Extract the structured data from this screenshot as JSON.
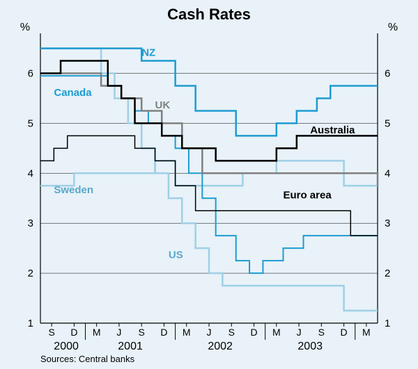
{
  "chart": {
    "type": "step-line",
    "title": "Cash Rates",
    "ylabel_left": "%",
    "ylabel_right": "%",
    "background_color": "#e8f2f8",
    "plot_background_color": "#e8f2f8",
    "axis_color": "#000000",
    "gridline_color": "#000000",
    "gridline_width": 0.5,
    "y_ticks": [
      1,
      2,
      3,
      4,
      5,
      6
    ],
    "ylim": [
      1,
      6.8
    ],
    "x_letters": [
      "S",
      "D",
      "M",
      "J",
      "S",
      "D",
      "M",
      "J",
      "S",
      "D",
      "M",
      "J",
      "S",
      "D",
      "M"
    ],
    "x_years": [
      "2000",
      "2001",
      "2002",
      "2003"
    ],
    "source": "Sources:  Central banks",
    "title_fontsize": 22,
    "tick_fontsize": 15,
    "label_fontsize": 15,
    "source_fontsize": 13,
    "series": {
      "nz": {
        "name": "NZ",
        "color": "#1d9bd1",
        "width": 2.5,
        "label_x": 0.3,
        "label_y": 6.35,
        "points": [
          [
            0.0,
            6.5
          ],
          [
            0.22,
            6.5
          ],
          [
            0.3,
            6.25
          ],
          [
            0.4,
            5.75
          ],
          [
            0.46,
            5.25
          ],
          [
            0.58,
            4.75
          ],
          [
            0.7,
            5.0
          ],
          [
            0.76,
            5.25
          ],
          [
            0.82,
            5.5
          ],
          [
            0.86,
            5.75
          ],
          [
            1.0,
            5.75
          ]
        ]
      },
      "canada": {
        "name": "Canada",
        "color": "#1d9bd1",
        "width": 2.0,
        "label_x": 0.04,
        "label_y": 5.55,
        "points": [
          [
            0.0,
            5.95
          ],
          [
            0.06,
            5.95
          ],
          [
            0.2,
            5.75
          ],
          [
            0.24,
            5.5
          ],
          [
            0.28,
            5.25
          ],
          [
            0.32,
            5.0
          ],
          [
            0.36,
            4.75
          ],
          [
            0.4,
            4.5
          ],
          [
            0.44,
            4.0
          ],
          [
            0.48,
            3.5
          ],
          [
            0.52,
            2.75
          ],
          [
            0.58,
            2.25
          ],
          [
            0.62,
            2.0
          ],
          [
            0.66,
            2.25
          ],
          [
            0.72,
            2.5
          ],
          [
            0.78,
            2.75
          ],
          [
            0.84,
            2.75
          ],
          [
            1.0,
            2.75
          ]
        ]
      },
      "uk": {
        "name": "UK",
        "color": "#808080",
        "width": 2.5,
        "label_x": 0.34,
        "label_y": 5.3,
        "points": [
          [
            0.0,
            6.0
          ],
          [
            0.18,
            5.75
          ],
          [
            0.24,
            5.5
          ],
          [
            0.3,
            5.25
          ],
          [
            0.36,
            5.0
          ],
          [
            0.42,
            4.5
          ],
          [
            0.48,
            4.0
          ],
          [
            0.96,
            4.0
          ],
          [
            1.0,
            3.75
          ]
        ]
      },
      "australia": {
        "name": "Australia",
        "color": "#000000",
        "width": 2.5,
        "label_x": 0.8,
        "label_y": 4.8,
        "points": [
          [
            0.0,
            6.0
          ],
          [
            0.06,
            6.25
          ],
          [
            0.2,
            5.75
          ],
          [
            0.24,
            5.5
          ],
          [
            0.28,
            5.0
          ],
          [
            0.36,
            4.75
          ],
          [
            0.42,
            4.5
          ],
          [
            0.52,
            4.25
          ],
          [
            0.7,
            4.5
          ],
          [
            0.76,
            4.75
          ],
          [
            1.0,
            4.75
          ]
        ]
      },
      "euro": {
        "name": "Euro area",
        "color": "#000000",
        "width": 1.5,
        "label_x": 0.72,
        "label_y": 3.5,
        "points": [
          [
            0.0,
            4.25
          ],
          [
            0.04,
            4.5
          ],
          [
            0.08,
            4.75
          ],
          [
            0.28,
            4.5
          ],
          [
            0.34,
            4.25
          ],
          [
            0.4,
            3.75
          ],
          [
            0.46,
            3.25
          ],
          [
            0.92,
            2.75
          ],
          [
            1.0,
            2.75
          ]
        ]
      },
      "sweden": {
        "name": "Sweden",
        "color": "#9fcfe6",
        "width": 2.5,
        "label_x": 0.04,
        "label_y": 3.6,
        "points": [
          [
            0.0,
            3.75
          ],
          [
            0.1,
            4.0
          ],
          [
            0.34,
            4.25
          ],
          [
            0.4,
            3.75
          ],
          [
            0.6,
            4.0
          ],
          [
            0.7,
            4.25
          ],
          [
            0.9,
            3.75
          ],
          [
            1.0,
            3.75
          ]
        ]
      },
      "us": {
        "name": "US",
        "color": "#9fcfe6",
        "width": 2.5,
        "label_x": 0.38,
        "label_y": 2.3,
        "points": [
          [
            0.0,
            6.5
          ],
          [
            0.18,
            6.0
          ],
          [
            0.22,
            5.5
          ],
          [
            0.26,
            5.0
          ],
          [
            0.3,
            4.5
          ],
          [
            0.34,
            4.0
          ],
          [
            0.38,
            3.5
          ],
          [
            0.42,
            3.0
          ],
          [
            0.46,
            2.5
          ],
          [
            0.5,
            2.0
          ],
          [
            0.54,
            1.75
          ],
          [
            0.9,
            1.25
          ],
          [
            1.0,
            1.25
          ]
        ]
      }
    }
  }
}
